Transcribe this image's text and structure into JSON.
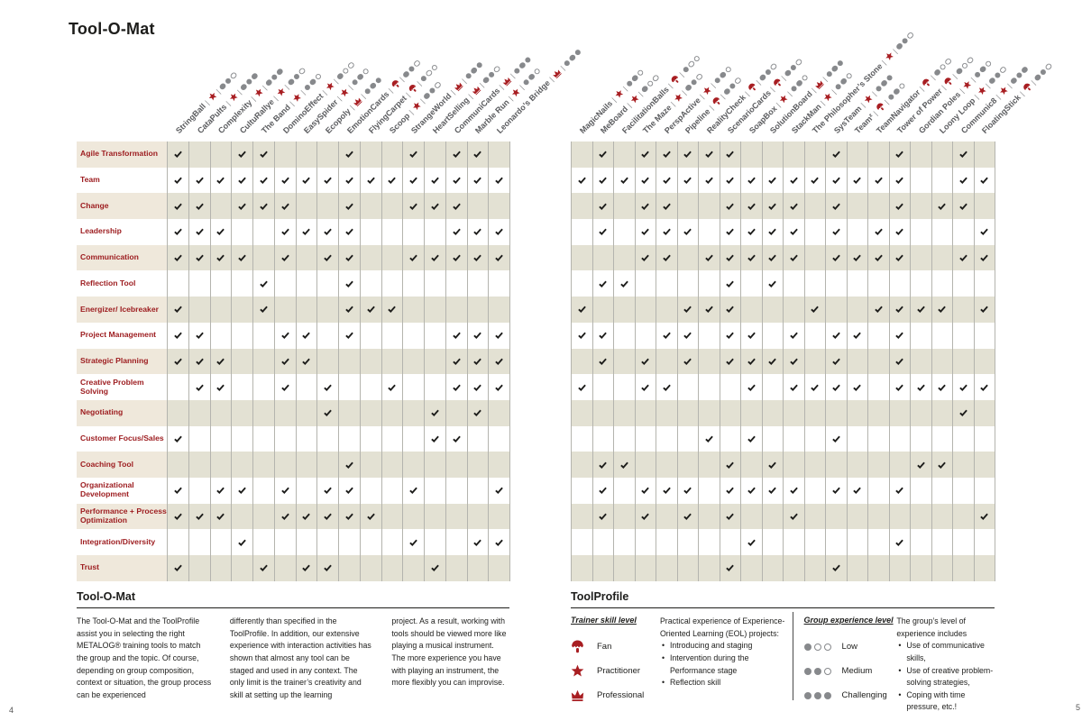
{
  "page": {
    "title": "Tool-O-Mat",
    "page_number_left": "4",
    "page_number_right": "5"
  },
  "colors": {
    "accent_red": "#A81E22",
    "label_red": "#9C1B1E",
    "grid_beige": "#E3E1D3",
    "label_beige": "#EFE8DB",
    "dot_gray": "#87898C",
    "header_gray": "#5A5B5E",
    "grid_line": "#B4B4AE",
    "check_color": "#1D1D1B"
  },
  "rows": [
    "Agile Transformation",
    "Team",
    "Change",
    "Leadership",
    "Communication",
    "Reflection Tool",
    "Energizer/ Icebreaker",
    "Project Management",
    "Strategic Planning",
    "Creative Problem Solving",
    "Negotiating",
    "Customer Focus/Sales",
    "Coaching Tool",
    "Organizational Development",
    "Performance + Process Optimization",
    "Integration/Diversity",
    "Trust"
  ],
  "left_panel": {
    "tools": [
      {
        "name": "StringBall",
        "skill": "practitioner",
        "level": 2
      },
      {
        "name": "CataPults",
        "skill": "practitioner",
        "level": 3
      },
      {
        "name": "Complexity",
        "skill": "practitioner",
        "level": 3
      },
      {
        "name": "CultuRallye",
        "skill": "practitioner",
        "level": 2
      },
      {
        "name": "The Band",
        "skill": "practitioner",
        "level": 2
      },
      {
        "name": "DominoEffect",
        "skill": "practitioner",
        "level": 1
      },
      {
        "name": "EasySpider",
        "skill": "practitioner",
        "level": 2
      },
      {
        "name": "Ecopoly",
        "skill": "professional",
        "level": 3
      },
      {
        "name": "EmotionCards",
        "skill": "fan",
        "level": 2
      },
      {
        "name": "FlyingCarpet",
        "skill": "fan",
        "level": 1
      },
      {
        "name": "Scoop",
        "skill": "practitioner",
        "level": 2
      },
      {
        "name": "StrangeWorld",
        "skill": "professional",
        "level": 3
      },
      {
        "name": "HeartSelling",
        "skill": "professional",
        "level": 2
      },
      {
        "name": "CommuniCards",
        "skill": "professional",
        "level": 3
      },
      {
        "name": "Marble Run",
        "skill": "practitioner",
        "level": 2
      },
      {
        "name": "Leonardo’s Bridge",
        "skill": "professional",
        "level": 3
      }
    ],
    "checks": [
      [
        1,
        4,
        5,
        9,
        12,
        14,
        15
      ],
      [
        1,
        2,
        3,
        4,
        5,
        6,
        7,
        8,
        9,
        10,
        11,
        12,
        13,
        14,
        15,
        16
      ],
      [
        1,
        2,
        4,
        5,
        6,
        9,
        12,
        13,
        14
      ],
      [
        1,
        2,
        3,
        6,
        7,
        8,
        9,
        14,
        15,
        16
      ],
      [
        1,
        2,
        3,
        4,
        6,
        8,
        9,
        12,
        13,
        14,
        15,
        16
      ],
      [
        5,
        9
      ],
      [
        1,
        5,
        9,
        10,
        11
      ],
      [
        1,
        2,
        6,
        7,
        9,
        14,
        15,
        16
      ],
      [
        1,
        2,
        3,
        6,
        7,
        14,
        15,
        16
      ],
      [
        2,
        3,
        6,
        8,
        11,
        14,
        15,
        16
      ],
      [
        8,
        13,
        15
      ],
      [
        1,
        13,
        14
      ],
      [
        9
      ],
      [
        1,
        3,
        4,
        6,
        8,
        9,
        12,
        16
      ],
      [
        1,
        2,
        3,
        6,
        7,
        8,
        9,
        10
      ],
      [
        4,
        12,
        15,
        16
      ],
      [
        1,
        5,
        7,
        8,
        13
      ]
    ]
  },
  "right_panel": {
    "tools": [
      {
        "name": "MagicNails",
        "skill": "practitioner",
        "level": 2
      },
      {
        "name": "MeBoard",
        "skill": "practitioner",
        "level": 1
      },
      {
        "name": "FacilitationBalls",
        "skill": "fan",
        "level": 1
      },
      {
        "name": "The Maze",
        "skill": "practitioner",
        "level": 2
      },
      {
        "name": "PerspActive",
        "skill": "practitioner",
        "level": 2
      },
      {
        "name": "Pipeline",
        "skill": "fan",
        "level": 2
      },
      {
        "name": "RealityCheck",
        "skill": "fan",
        "level": 2
      },
      {
        "name": "ScenarioCards",
        "skill": "fan",
        "level": 2
      },
      {
        "name": "SoapBox",
        "skill": "practitioner",
        "level": 2
      },
      {
        "name": "SolutionBoard",
        "skill": "professional",
        "level": 3
      },
      {
        "name": "StackMan",
        "skill": "practitioner",
        "level": 2
      },
      {
        "name": "The Philosopher’s Stone",
        "skill": "practitioner",
        "level": 2
      },
      {
        "name": "SysTeam",
        "skill": "practitioner",
        "level": 3
      },
      {
        "name": "Team²",
        "skill": "fan",
        "level": 2
      },
      {
        "name": "TeamNavigator",
        "skill": "fan",
        "level": 1
      },
      {
        "name": "Tower of Power",
        "skill": "fan",
        "level": 1
      },
      {
        "name": "Gordian Poles",
        "skill": "practitioner",
        "level": 2
      },
      {
        "name": "Loony Loop",
        "skill": "practitioner",
        "level": 2
      },
      {
        "name": "Communic8",
        "skill": "practitioner",
        "level": 3
      },
      {
        "name": "FloatingStick",
        "skill": "fan",
        "level": 2
      }
    ],
    "checks": [
      [
        2,
        4,
        5,
        6,
        7,
        8,
        13,
        16,
        19
      ],
      [
        1,
        2,
        3,
        4,
        5,
        6,
        7,
        8,
        9,
        10,
        11,
        12,
        13,
        14,
        15,
        16,
        19,
        20
      ],
      [
        2,
        4,
        5,
        8,
        9,
        10,
        11,
        13,
        16,
        18,
        19
      ],
      [
        2,
        4,
        5,
        6,
        8,
        9,
        10,
        11,
        13,
        15,
        16,
        20
      ],
      [
        4,
        5,
        7,
        8,
        9,
        10,
        11,
        13,
        14,
        15,
        16,
        19,
        20
      ],
      [
        2,
        3,
        8,
        10
      ],
      [
        1,
        6,
        7,
        8,
        12,
        15,
        16,
        17,
        18,
        20
      ],
      [
        1,
        2,
        5,
        6,
        8,
        9,
        11,
        13,
        14,
        16
      ],
      [
        2,
        4,
        6,
        8,
        9,
        10,
        11,
        13,
        16
      ],
      [
        1,
        4,
        5,
        9,
        11,
        12,
        13,
        14,
        16,
        17,
        18,
        19,
        20
      ],
      [
        19
      ],
      [
        7,
        9,
        13
      ],
      [
        2,
        3,
        8,
        10,
        17,
        18
      ],
      [
        2,
        4,
        5,
        6,
        8,
        9,
        10,
        11,
        13,
        14,
        16
      ],
      [
        2,
        4,
        6,
        8,
        11,
        20
      ],
      [
        9,
        16
      ],
      [
        8,
        13
      ]
    ]
  },
  "footer_left": {
    "heading": "Tool-O-Mat",
    "columns": [
      "The Tool-O-Mat and the ToolProfile assist you in selecting the right METALOG® training tools to match the group and the topic. Of course, depending on group composition, context or situation, the group process can be experienced",
      "differently than specified in the ToolProfile. In addition, our extensive experience with interaction activities has shown that almost any tool can be staged and used in any context. The only limit is the trainer’s creativity and skill at setting up the learning",
      "project. As a result, working with tools should be viewed more like playing a musical instrument. The more experience you have with playing an instrument, the more flexibly you can improvise."
    ]
  },
  "footer_right": {
    "heading": "ToolProfile",
    "trainer": {
      "title": "Trainer skill level",
      "items": [
        {
          "skill": "fan",
          "label": "Fan"
        },
        {
          "skill": "practitioner",
          "label": "Practitioner"
        },
        {
          "skill": "professional",
          "label": "Professional"
        }
      ]
    },
    "practice": {
      "intro": "Practical experience of Experience-Oriented Learning (EOL) projects:",
      "bullets": [
        "Introducing and staging",
        "Intervention during the Performance stage",
        "Reflection skill"
      ]
    },
    "group": {
      "title": "Group experience level",
      "items": [
        {
          "level": 1,
          "label": "Low"
        },
        {
          "level": 2,
          "label": "Medium"
        },
        {
          "level": 3,
          "label": "Challenging"
        }
      ]
    },
    "group_desc": {
      "intro": "The group’s level of experience includes",
      "bullets": [
        "Use of communicative skills,",
        "Use of creative problem-solving strategies,",
        "Coping with time pressure, etc.!"
      ]
    }
  }
}
